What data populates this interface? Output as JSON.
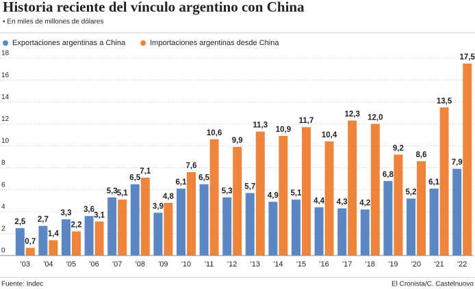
{
  "chart_data": {
    "type": "bar",
    "title": "Historia reciente del vínculo argentino con China",
    "subtitle": "• En miles de millones de dólares",
    "source": "Fuente: Indec",
    "credit": "El Cronista/C. Castelnuovo",
    "categories": [
      "'03",
      "'04",
      "'05",
      "'06",
      "'07",
      "'08",
      "'09",
      "'10",
      "'11",
      "'12",
      "'13",
      "'14",
      "'15",
      "'16",
      "'17",
      "'18",
      "'19",
      "'20",
      "'21",
      "'22"
    ],
    "series": [
      {
        "name": "Exportaciones argentinas a China",
        "color": "#5b88c4",
        "values": [
          2.5,
          2.7,
          3.3,
          3.6,
          5.3,
          6.5,
          3.9,
          6.1,
          6.5,
          5.3,
          5.7,
          4.9,
          5.1,
          4.4,
          4.3,
          4.2,
          6.8,
          5.2,
          6.1,
          7.9
        ],
        "value_labels": [
          "2,5",
          "2,7",
          "3,3",
          "3,6",
          "5,3",
          "6,5",
          "3,9",
          "6,1",
          "6,5",
          "5,3",
          "5,7",
          "4,9",
          "5,1",
          "4,4",
          "4,3",
          "4,2",
          "6,8",
          "5,2",
          "6,1",
          "7,9"
        ]
      },
      {
        "name": "Importaciones argentinas desde China",
        "color": "#ef843c",
        "values": [
          0.7,
          1.4,
          2.2,
          3.1,
          5.1,
          7.1,
          4.8,
          7.6,
          10.6,
          9.9,
          11.3,
          10.9,
          11.7,
          10.4,
          12.3,
          12.0,
          9.2,
          8.6,
          13.5,
          17.5
        ],
        "value_labels": [
          "0,7",
          "1,4",
          "2,2",
          "3,1",
          "5,1",
          "7,1",
          "4,8",
          "7,6",
          "10,6",
          "9,9",
          "11,3",
          "10,9",
          "11,7",
          "10,4",
          "12,3",
          "12,0",
          "9,2",
          "8,6",
          "13,5",
          "17,5"
        ]
      }
    ],
    "ylim": [
      0,
      18
    ],
    "yticks": [
      0,
      2,
      4,
      6,
      8,
      10,
      12,
      14,
      16,
      18
    ],
    "grid": true
  }
}
